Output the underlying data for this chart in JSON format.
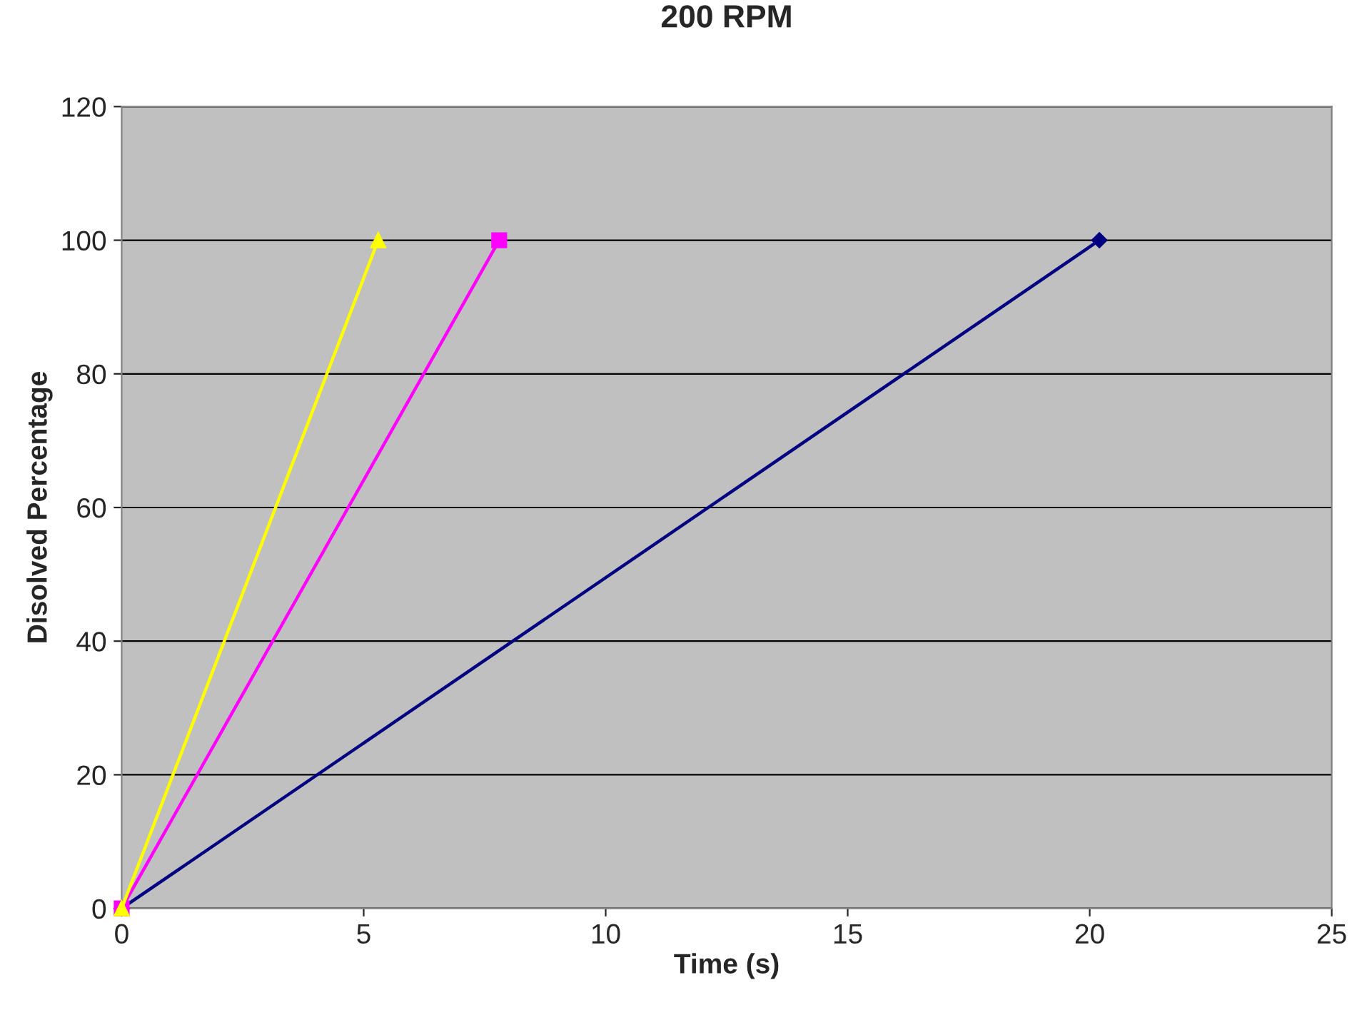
{
  "chart_data": {
    "type": "line",
    "title": "200 RPM",
    "xlabel": "Time (s)",
    "ylabel": "Disolved Percentage",
    "series": [
      {
        "color": "#000080",
        "x": [
          0,
          20.2
        ],
        "values": [
          0,
          100
        ],
        "marker": "diamond"
      },
      {
        "color": "#ff00ff",
        "x": [
          0,
          7.8
        ],
        "values": [
          0,
          100
        ],
        "marker": "square"
      },
      {
        "color": "#ffff00",
        "x": [
          0,
          5.3
        ],
        "values": [
          0,
          100
        ],
        "marker": "triangle"
      }
    ],
    "xlim": [
      0,
      25
    ],
    "xticks": [
      0,
      5,
      10,
      15,
      20,
      25
    ],
    "ylim": [
      0,
      120
    ],
    "yticks": [
      0,
      20,
      40,
      60,
      80,
      100,
      120
    ],
    "grid": "y",
    "legend": false
  }
}
